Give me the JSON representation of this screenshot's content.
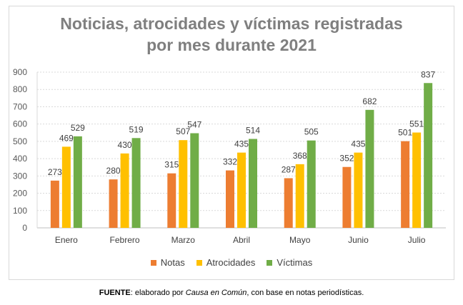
{
  "chart_data": {
    "type": "bar",
    "title_line1": "Noticias, atrocidades y víctimas registradas",
    "title_line2": "por mes durante 2021",
    "categories": [
      "Enero",
      "Febrero",
      "Marzo",
      "Abril",
      "Mayo",
      "Junio",
      "Julio"
    ],
    "series": [
      {
        "name": "Notas",
        "color": "#ed7d31",
        "values": [
          273,
          280,
          315,
          332,
          287,
          352,
          501
        ]
      },
      {
        "name": "Atrocidades",
        "color": "#ffc000",
        "values": [
          469,
          430,
          507,
          435,
          368,
          435,
          551
        ]
      },
      {
        "name": "Víctimas",
        "color": "#70ad47",
        "values": [
          529,
          519,
          547,
          514,
          505,
          682,
          837
        ]
      }
    ],
    "ylim": [
      0,
      900
    ],
    "yticks": [
      0,
      100,
      200,
      300,
      400,
      500,
      600,
      700,
      800,
      900
    ],
    "grid": true,
    "legend_position": "bottom"
  },
  "footer": {
    "label": "FUENTE",
    "text_before": ": elaborado por ",
    "source": "Causa en Común",
    "text_after": ", con base en notas periodísticas."
  }
}
